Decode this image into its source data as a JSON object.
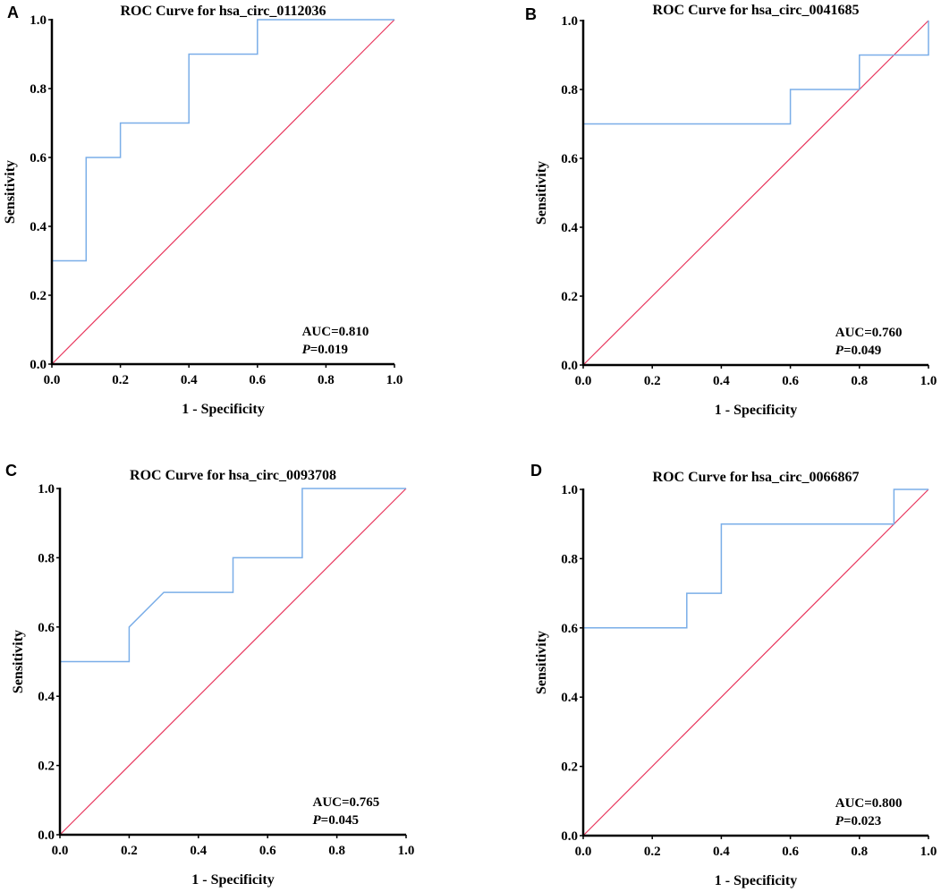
{
  "figure": {
    "colors": {
      "roc_curve": "#7aaee8",
      "reference_line": "#e8365d",
      "axis": "#000000"
    }
  },
  "chart_data": [
    {
      "panel": "A",
      "type": "line",
      "title": "ROC Curve for hsa_circ_0112036",
      "xlabel": "1 - Specificity",
      "ylabel": "Sensitivity",
      "xlim": [
        0,
        1
      ],
      "ylim": [
        0,
        1
      ],
      "xticks": [
        "0.0",
        "0.2",
        "0.4",
        "0.6",
        "0.8",
        "1.0"
      ],
      "yticks": [
        "0.0",
        "0.2",
        "0.4",
        "0.6",
        "0.8",
        "1.0"
      ],
      "series": [
        {
          "name": "ROC",
          "x": [
            0,
            0,
            0.1,
            0.1,
            0.2,
            0.2,
            0.4,
            0.4,
            0.6,
            0.6,
            1.0
          ],
          "y": [
            0,
            0.3,
            0.3,
            0.6,
            0.6,
            0.7,
            0.7,
            0.9,
            0.9,
            1.0,
            1.0
          ]
        },
        {
          "name": "Reference",
          "x": [
            0,
            1
          ],
          "y": [
            0,
            1
          ]
        }
      ],
      "auc_text": "AUC=0.810",
      "p_prefix": "P",
      "p_value": "=0.019"
    },
    {
      "panel": "B",
      "type": "line",
      "title": "ROC Curve for hsa_circ_0041685",
      "xlabel": "1 - Specificity",
      "ylabel": "Sensitivity",
      "xlim": [
        0,
        1
      ],
      "ylim": [
        0,
        1
      ],
      "xticks": [
        "0.0",
        "0.2",
        "0.4",
        "0.6",
        "0.8",
        "1.0"
      ],
      "yticks": [
        "0.0",
        "0.2",
        "0.4",
        "0.6",
        "0.8",
        "1.0"
      ],
      "series": [
        {
          "name": "ROC",
          "x": [
            0,
            0,
            0.6,
            0.6,
            0.8,
            0.8,
            1.0,
            1.0
          ],
          "y": [
            0,
            0.7,
            0.7,
            0.8,
            0.8,
            0.9,
            0.9,
            1.0
          ]
        },
        {
          "name": "Reference",
          "x": [
            0,
            1
          ],
          "y": [
            0,
            1
          ]
        }
      ],
      "auc_text": "AUC=0.760",
      "p_prefix": "P",
      "p_value": "=0.049"
    },
    {
      "panel": "C",
      "type": "line",
      "title": "ROC Curve for hsa_circ_0093708",
      "xlabel": "1 - Specificity",
      "ylabel": "Sensitivity",
      "xlim": [
        0,
        1
      ],
      "ylim": [
        0,
        1
      ],
      "xticks": [
        "0.0",
        "0.2",
        "0.4",
        "0.6",
        "0.8",
        "1.0"
      ],
      "yticks": [
        "0.0",
        "0.2",
        "0.4",
        "0.6",
        "0.8",
        "1.0"
      ],
      "series": [
        {
          "name": "ROC",
          "x": [
            0,
            0,
            0.2,
            0.2,
            0.3,
            0.5,
            0.5,
            0.7,
            0.7,
            1.0
          ],
          "y": [
            0,
            0.5,
            0.5,
            0.6,
            0.7,
            0.7,
            0.8,
            0.8,
            1.0,
            1.0
          ]
        },
        {
          "name": "Reference",
          "x": [
            0,
            1
          ],
          "y": [
            0,
            1
          ]
        }
      ],
      "auc_text": "AUC=0.765",
      "p_prefix": "P",
      "p_value": "=0.045"
    },
    {
      "panel": "D",
      "type": "line",
      "title": "ROC Curve for hsa_circ_0066867",
      "xlabel": "1 - Specificity",
      "ylabel": "Sensitivity",
      "xlim": [
        0,
        1
      ],
      "ylim": [
        0,
        1
      ],
      "xticks": [
        "0.0",
        "0.2",
        "0.4",
        "0.6",
        "0.8",
        "1.0"
      ],
      "yticks": [
        "0.0",
        "0.2",
        "0.4",
        "0.6",
        "0.8",
        "1.0"
      ],
      "series": [
        {
          "name": "ROC",
          "x": [
            0,
            0,
            0.3,
            0.3,
            0.4,
            0.4,
            0.9,
            0.9,
            1.0
          ],
          "y": [
            0,
            0.6,
            0.6,
            0.7,
            0.7,
            0.9,
            0.9,
            1.0,
            1.0
          ]
        },
        {
          "name": "Reference",
          "x": [
            0,
            1
          ],
          "y": [
            0,
            1
          ]
        }
      ],
      "auc_text": "AUC=0.800",
      "p_prefix": "P",
      "p_value": "=0.023"
    }
  ]
}
